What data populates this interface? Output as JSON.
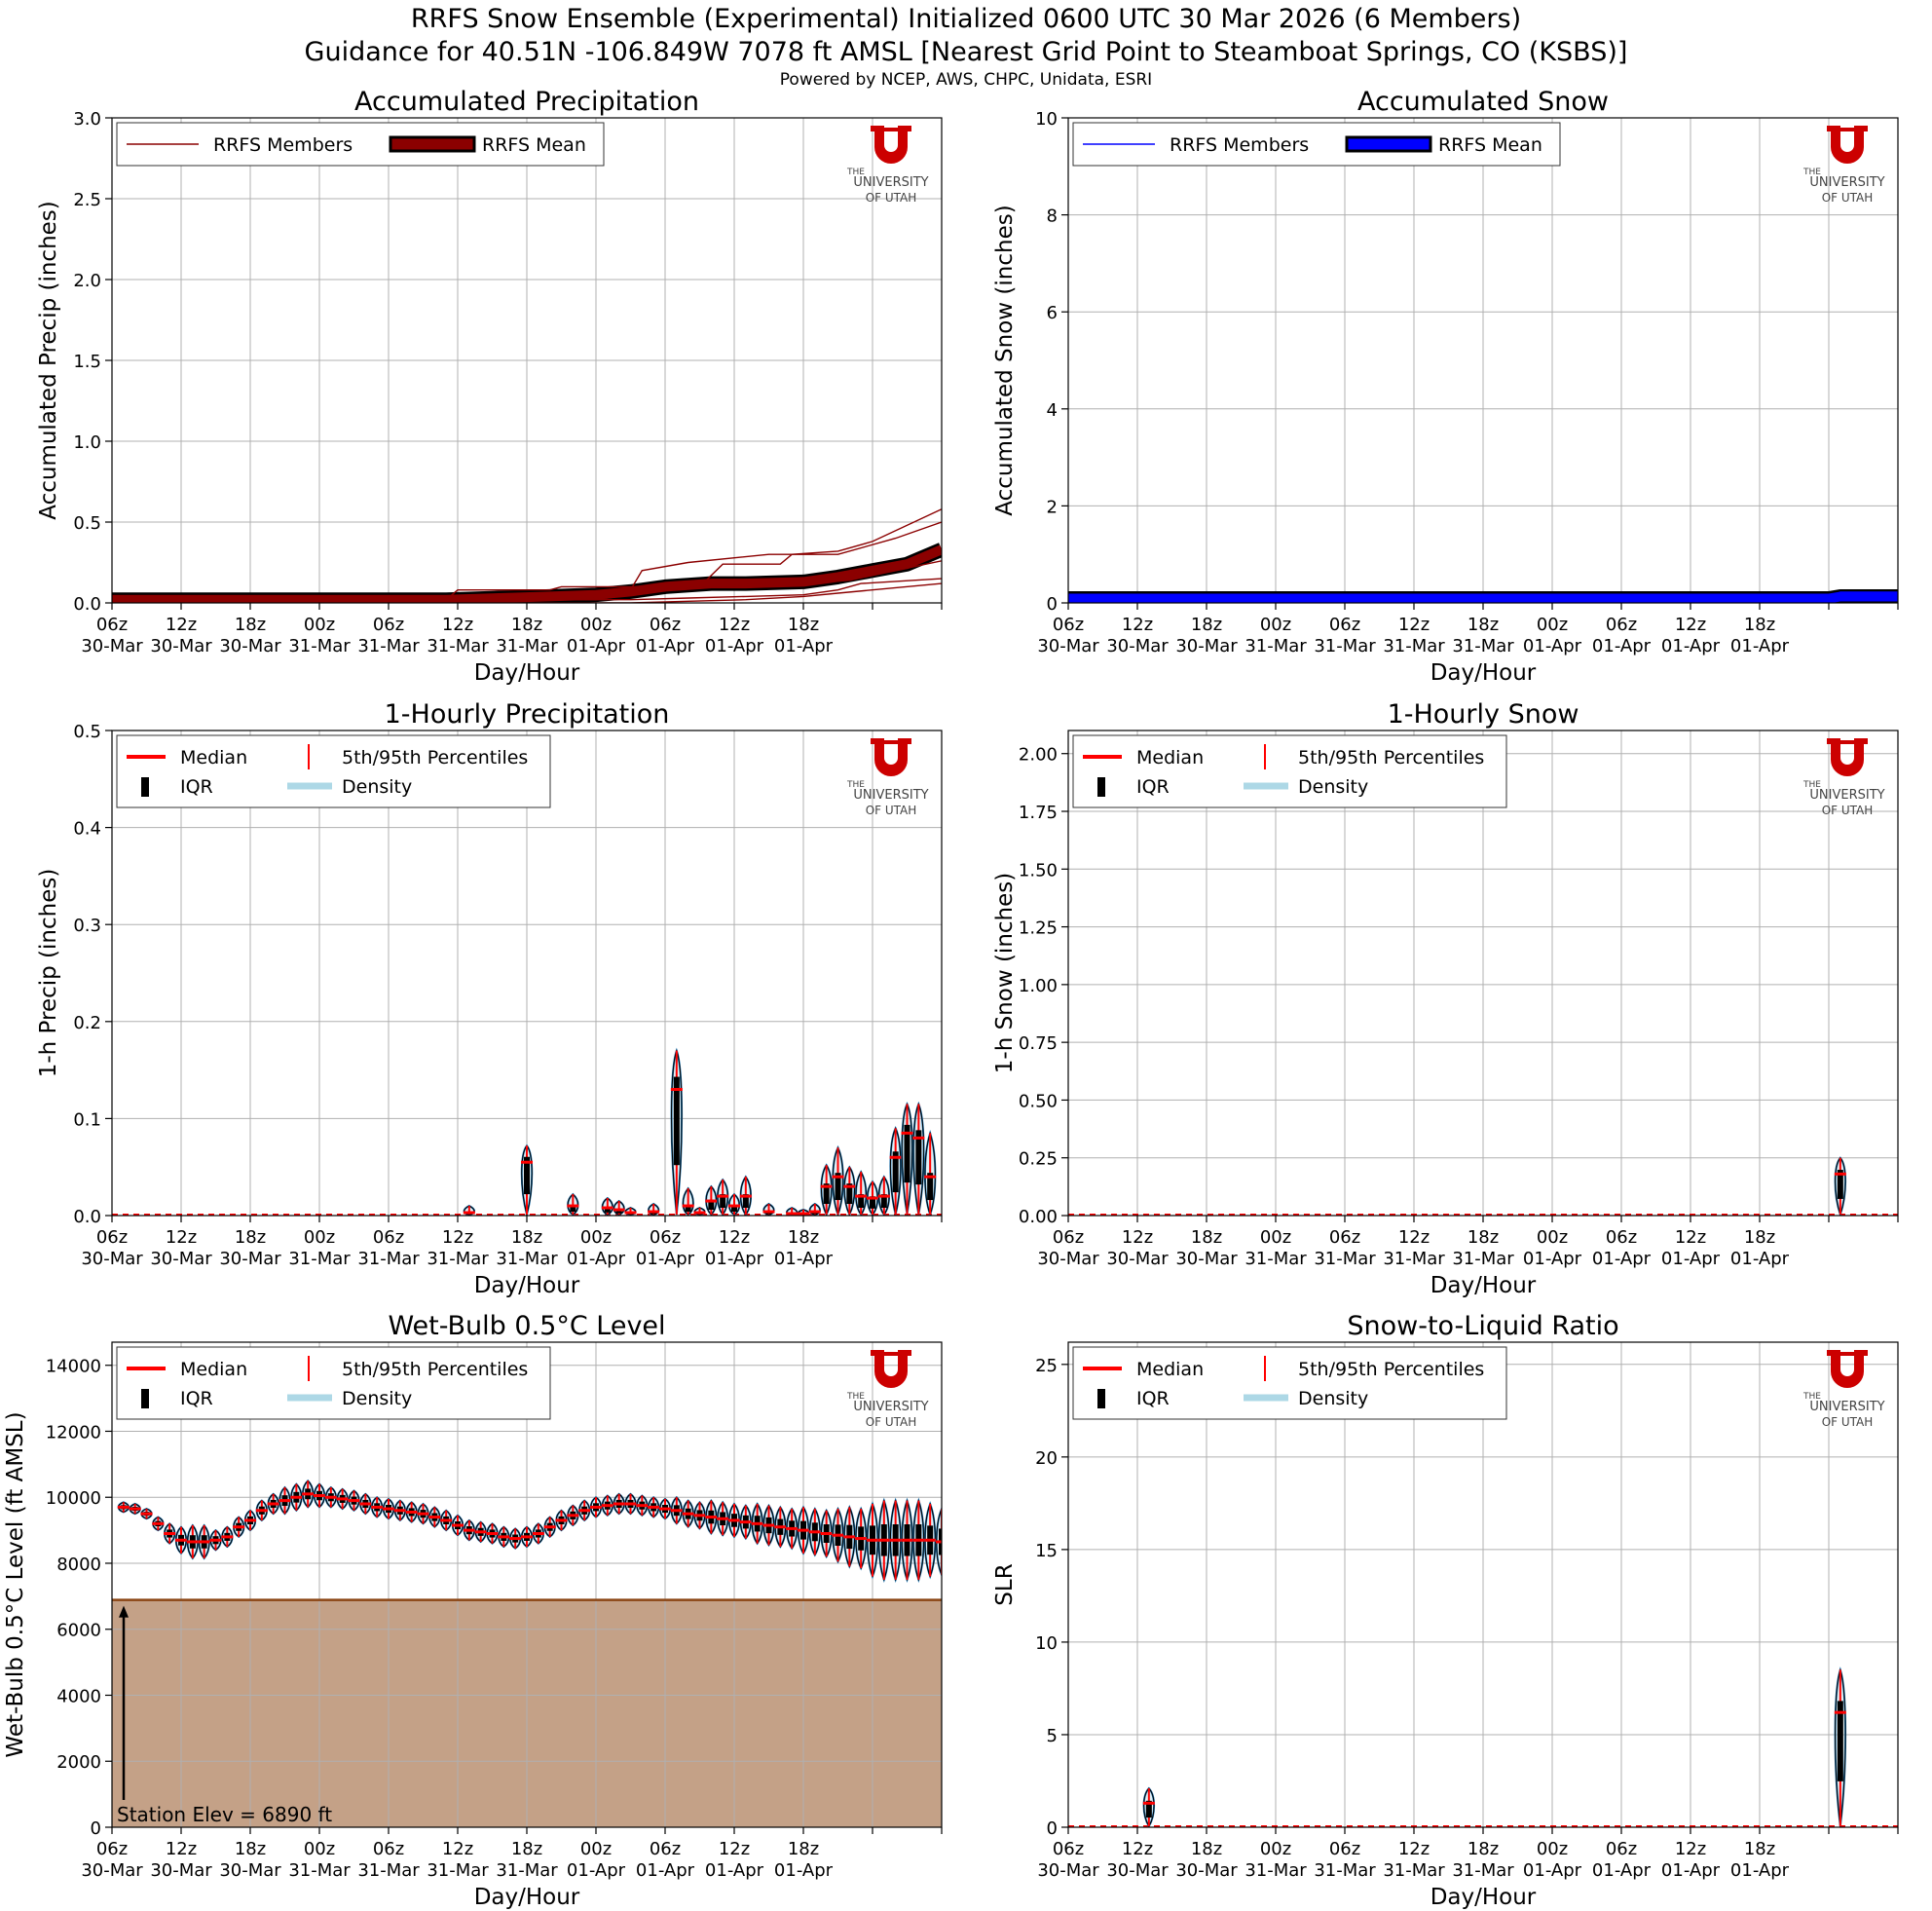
{
  "header": {
    "title": "RRFS Snow Ensemble (Experimental) Initialized 0600 UTC 30 Mar 2026 (6 Members)",
    "subtitle": "Guidance for 40.51N -106.849W 7078 ft AMSL [Nearest Grid Point to Steamboat Springs, CO (KSBS)]",
    "credit": "Powered by NCEP, AWS, CHPC, Unidata, ESRI"
  },
  "logo": {
    "line1": "THE",
    "line2": "UNIVERSITY",
    "line3": "OF UTAH"
  },
  "colors": {
    "precip": "#8b0000",
    "snow": "#0000ff",
    "median": "#ff0000",
    "density": "#add8e6",
    "violet_edge": "#1f77b4",
    "terrain": "#c4a187",
    "terrain_line": "#8b4513"
  },
  "x_axis": {
    "label": "Day/Hour",
    "hours": [
      0,
      6,
      12,
      18,
      24,
      30,
      36,
      42,
      48,
      54,
      60,
      66,
      72
    ],
    "ticks": [
      {
        "top": "06z",
        "bottom": "30-Mar"
      },
      {
        "top": "12z",
        "bottom": "30-Mar"
      },
      {
        "top": "18z",
        "bottom": "30-Mar"
      },
      {
        "top": "00z",
        "bottom": "31-Mar"
      },
      {
        "top": "06z",
        "bottom": "31-Mar"
      },
      {
        "top": "12z",
        "bottom": "31-Mar"
      },
      {
        "top": "18z",
        "bottom": "31-Mar"
      },
      {
        "top": "00z",
        "bottom": "01-Apr"
      },
      {
        "top": "06z",
        "bottom": "01-Apr"
      },
      {
        "top": "12z",
        "bottom": "01-Apr"
      },
      {
        "top": "18z",
        "bottom": "01-Apr"
      }
    ]
  },
  "chart_data": [
    {
      "id": "accum-precip",
      "type": "line",
      "title": "Accumulated Precipitation",
      "xlabel": "Day/Hour",
      "ylabel": "Accumulated Precip (inches)",
      "ylim": [
        0,
        3.0
      ],
      "yticks": [
        "0.0",
        "0.5",
        "1.0",
        "1.5",
        "2.0",
        "2.5",
        "3.0"
      ],
      "legend": [
        "RRFS Members",
        "RRFS Mean"
      ],
      "legend_position": "top-left",
      "members": [
        {
          "x": [
            0,
            29,
            30,
            38,
            39,
            51,
            53,
            58,
            59,
            63,
            66,
            72
          ],
          "y": [
            0.02,
            0.02,
            0.08,
            0.08,
            0.1,
            0.1,
            0.24,
            0.24,
            0.3,
            0.32,
            0.38,
            0.58
          ]
        },
        {
          "x": [
            0,
            38,
            42,
            45,
            46,
            50,
            57,
            63,
            68,
            72
          ],
          "y": [
            0.02,
            0.02,
            0.05,
            0.08,
            0.2,
            0.25,
            0.3,
            0.3,
            0.4,
            0.5
          ]
        },
        {
          "x": [
            0,
            40,
            43,
            48,
            53,
            57,
            61,
            63,
            66,
            72
          ],
          "y": [
            0.02,
            0.02,
            0.03,
            0.08,
            0.1,
            0.12,
            0.12,
            0.14,
            0.22,
            0.3
          ]
        },
        {
          "x": [
            0,
            42,
            44,
            48,
            52,
            55,
            60,
            64,
            68,
            72
          ],
          "y": [
            0.02,
            0.02,
            0.05,
            0.08,
            0.1,
            0.11,
            0.12,
            0.14,
            0.2,
            0.26
          ]
        },
        {
          "x": [
            0,
            45,
            50,
            55,
            60,
            63,
            65,
            72
          ],
          "y": [
            0.02,
            0.02,
            0.03,
            0.04,
            0.05,
            0.08,
            0.12,
            0.15
          ]
        },
        {
          "x": [
            0,
            45,
            50,
            55,
            60,
            63,
            72
          ],
          "y": [
            0.0,
            0.0,
            0.01,
            0.02,
            0.04,
            0.06,
            0.12
          ]
        }
      ],
      "mean": {
        "x": [
          0,
          29,
          38,
          42,
          45,
          48,
          52,
          55,
          60,
          63,
          66,
          69,
          72
        ],
        "y": [
          0.02,
          0.02,
          0.04,
          0.05,
          0.07,
          0.1,
          0.12,
          0.12,
          0.13,
          0.16,
          0.2,
          0.24,
          0.33
        ]
      }
    },
    {
      "id": "accum-snow",
      "type": "line",
      "title": "Accumulated Snow",
      "xlabel": "Day/Hour",
      "ylabel": "Accumulated Snow (inches)",
      "ylim": [
        0,
        10
      ],
      "yticks": [
        "0",
        "2",
        "4",
        "6",
        "8",
        "10"
      ],
      "legend": [
        "RRFS Members",
        "RRFS Mean"
      ],
      "legend_position": "top-left",
      "members": [
        {
          "x": [
            0,
            66,
            67,
            72
          ],
          "y": [
            0.1,
            0.1,
            0.22,
            0.22
          ]
        },
        {
          "x": [
            0,
            72
          ],
          "y": [
            0.08,
            0.08
          ]
        }
      ],
      "mean": {
        "x": [
          0,
          66,
          67,
          72
        ],
        "y": [
          0.09,
          0.09,
          0.13,
          0.13
        ]
      }
    },
    {
      "id": "hourly-precip",
      "type": "violin",
      "title": "1-Hourly Precipitation",
      "xlabel": "Day/Hour",
      "ylabel": "1-h Precip (inches)",
      "ylim": [
        0,
        0.5
      ],
      "yticks": [
        "0.0",
        "0.1",
        "0.2",
        "0.3",
        "0.4",
        "0.5"
      ],
      "legend": [
        "Median",
        "5th/95th Percentiles",
        "IQR",
        "Density"
      ],
      "legend_position": "top-left",
      "baseline": 0.001,
      "values": [
        {
          "x": 31,
          "max": 0.01,
          "med": 0.003
        },
        {
          "x": 36,
          "max": 0.072,
          "med": 0.055
        },
        {
          "x": 40,
          "max": 0.022,
          "med": 0.01
        },
        {
          "x": 43,
          "max": 0.018,
          "med": 0.008
        },
        {
          "x": 44,
          "max": 0.015,
          "med": 0.006
        },
        {
          "x": 45,
          "max": 0.008,
          "med": 0.003
        },
        {
          "x": 47,
          "max": 0.012,
          "med": 0.004
        },
        {
          "x": 49,
          "max": 0.17,
          "med": 0.13
        },
        {
          "x": 50,
          "max": 0.028,
          "med": 0.01
        },
        {
          "x": 51,
          "max": 0.008,
          "med": 0.003
        },
        {
          "x": 52,
          "max": 0.03,
          "med": 0.015
        },
        {
          "x": 53,
          "max": 0.037,
          "med": 0.02
        },
        {
          "x": 54,
          "max": 0.022,
          "med": 0.01
        },
        {
          "x": 55,
          "max": 0.04,
          "med": 0.02
        },
        {
          "x": 57,
          "max": 0.012,
          "med": 0.004
        },
        {
          "x": 59,
          "max": 0.008,
          "med": 0.002
        },
        {
          "x": 60,
          "max": 0.006,
          "med": 0.002
        },
        {
          "x": 61,
          "max": 0.012,
          "med": 0.004
        },
        {
          "x": 62,
          "max": 0.052,
          "med": 0.03
        },
        {
          "x": 63,
          "max": 0.07,
          "med": 0.04
        },
        {
          "x": 64,
          "max": 0.05,
          "med": 0.03
        },
        {
          "x": 65,
          "max": 0.045,
          "med": 0.02
        },
        {
          "x": 66,
          "max": 0.035,
          "med": 0.018
        },
        {
          "x": 67,
          "max": 0.04,
          "med": 0.02
        },
        {
          "x": 68,
          "max": 0.09,
          "med": 0.06
        },
        {
          "x": 69,
          "max": 0.115,
          "med": 0.085
        },
        {
          "x": 70,
          "max": 0.115,
          "med": 0.08
        },
        {
          "x": 71,
          "max": 0.085,
          "med": 0.04
        }
      ]
    },
    {
      "id": "hourly-snow",
      "type": "violin",
      "title": "1-Hourly Snow",
      "xlabel": "Day/Hour",
      "ylabel": "1-h Snow (inches)",
      "ylim": [
        0,
        2.1
      ],
      "yticks": [
        "0.00",
        "0.25",
        "0.50",
        "0.75",
        "1.00",
        "1.25",
        "1.50",
        "1.75",
        "2.00"
      ],
      "ytick_values": [
        0,
        0.25,
        0.5,
        0.75,
        1.0,
        1.25,
        1.5,
        1.75,
        2.0
      ],
      "legend": [
        "Median",
        "5th/95th Percentiles",
        "IQR",
        "Density"
      ],
      "legend_position": "top-left",
      "baseline": 0.004,
      "values": [
        {
          "x": 67,
          "max": 0.25,
          "med": 0.18
        }
      ]
    },
    {
      "id": "wetbulb",
      "type": "violin",
      "title": "Wet-Bulb 0.5°C Level",
      "xlabel": "Day/Hour",
      "ylabel": "Wet-Bulb 0.5°C Level (ft AMSL)",
      "ylim": [
        0,
        14700
      ],
      "yticks": [
        "0",
        "2000",
        "4000",
        "6000",
        "8000",
        "10000",
        "12000",
        "14000"
      ],
      "ytick_values": [
        0,
        2000,
        4000,
        6000,
        8000,
        10000,
        12000,
        14000
      ],
      "legend": [
        "Median",
        "5th/95th Percentiles",
        "IQR",
        "Density"
      ],
      "legend_position": "top-left",
      "station_elev": 6890,
      "station_label": "Station Elev = 6890 ft",
      "median": [
        9700,
        9650,
        9500,
        9200,
        8900,
        8700,
        8650,
        8650,
        8700,
        8800,
        9100,
        9300,
        9600,
        9800,
        9900,
        10000,
        10100,
        10050,
        10000,
        9950,
        9900,
        9800,
        9700,
        9650,
        9600,
        9550,
        9500,
        9400,
        9300,
        9150,
        9000,
        8950,
        8900,
        8800,
        8750,
        8800,
        8900,
        9100,
        9300,
        9450,
        9600,
        9700,
        9750,
        9800,
        9800,
        9750,
        9700,
        9650,
        9600,
        9500,
        9450,
        9400,
        9350,
        9300,
        9250,
        9200,
        9150,
        9100,
        9050,
        9000,
        8950,
        8900,
        8850,
        8800,
        8750,
        8700,
        8700,
        8700,
        8700,
        8700,
        8700,
        8650
      ],
      "spread": [
        150,
        150,
        150,
        200,
        300,
        400,
        500,
        500,
        300,
        300,
        300,
        300,
        300,
        300,
        400,
        400,
        400,
        350,
        300,
        300,
        300,
        300,
        300,
        300,
        300,
        300,
        300,
        300,
        300,
        300,
        300,
        300,
        300,
        300,
        300,
        300,
        300,
        300,
        300,
        300,
        300,
        300,
        300,
        300,
        300,
        300,
        300,
        300,
        400,
        400,
        400,
        500,
        500,
        500,
        500,
        600,
        600,
        600,
        600,
        700,
        700,
        700,
        800,
        900,
        900,
        1100,
        1200,
        1200,
        1200,
        1200,
        1100,
        1000
      ]
    },
    {
      "id": "slr",
      "type": "violin",
      "title": "Snow-to-Liquid Ratio",
      "xlabel": "Day/Hour",
      "ylabel": "SLR",
      "ylim": [
        0,
        26.2
      ],
      "yticks": [
        "0",
        "5",
        "10",
        "15",
        "20",
        "25"
      ],
      "ytick_values": [
        0,
        5,
        10,
        15,
        20,
        25
      ],
      "legend": [
        "Median",
        "5th/95th Percentiles",
        "IQR",
        "Density"
      ],
      "legend_position": "top-left",
      "baseline": 0.05,
      "values": [
        {
          "x": 7,
          "max": 2.1,
          "med": 1.3
        },
        {
          "x": 67,
          "max": 8.5,
          "med": 6.2
        }
      ]
    }
  ]
}
